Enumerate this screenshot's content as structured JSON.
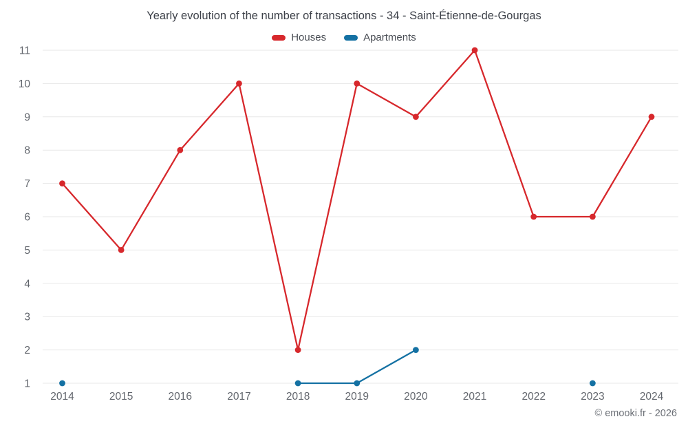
{
  "watermark": "© emooki.fr - 2026",
  "chart_data": {
    "type": "line",
    "title": "Yearly evolution of the number of transactions - 34 - Saint-Étienne-de-Gourgas",
    "categories": [
      "2014",
      "2015",
      "2016",
      "2017",
      "2018",
      "2019",
      "2020",
      "2021",
      "2022",
      "2023",
      "2024"
    ],
    "series": [
      {
        "name": "Houses",
        "color": "#d7282c",
        "values": [
          7,
          5,
          8,
          10,
          2,
          10,
          9,
          11,
          6,
          6,
          9
        ]
      },
      {
        "name": "Apartments",
        "color": "#1471a3",
        "values": [
          1,
          null,
          null,
          null,
          1,
          1,
          2,
          null,
          null,
          1,
          null
        ]
      }
    ],
    "xlabel": "",
    "ylabel": "",
    "ylim": [
      1,
      11
    ],
    "yticks": [
      1,
      2,
      3,
      4,
      5,
      6,
      7,
      8,
      9,
      10,
      11
    ],
    "grid": "horizontal",
    "legend_position": "top",
    "grid_color": "#e7e7e7",
    "axis_label_color": "#62666d"
  }
}
